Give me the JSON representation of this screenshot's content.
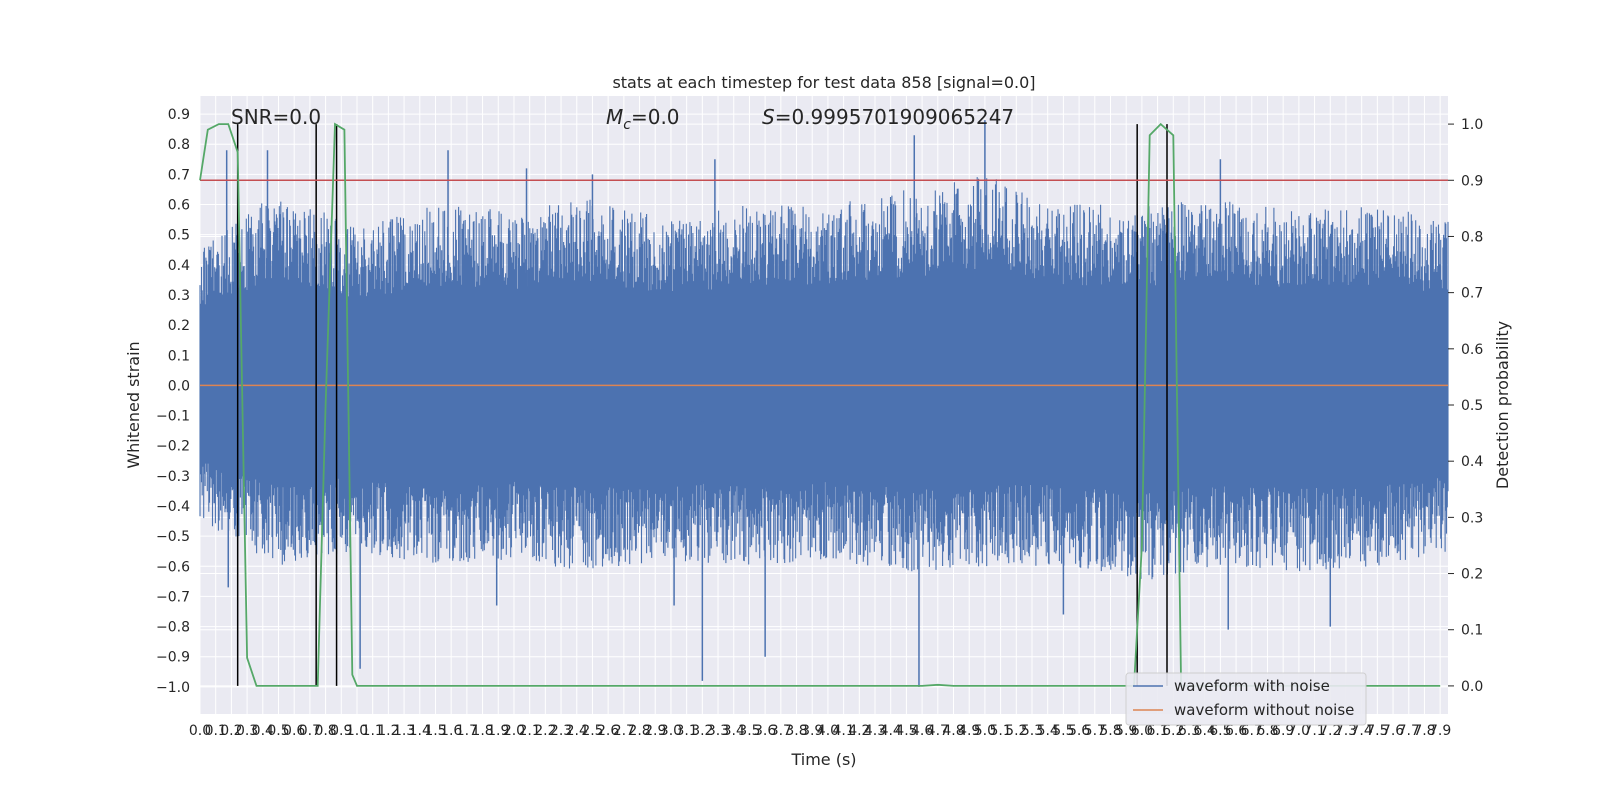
{
  "chart_data": {
    "type": "line",
    "title": "stats at each timestep for test data 858 [signal=0.0]",
    "xlabel": "Time (s)",
    "ylabel_left": "Whitened strain",
    "ylabel_right": "Detection probability",
    "annotations": {
      "snr": "SNR=0.0",
      "mc_symbol": "M",
      "mc_sub": "c",
      "mc_value": "=0.0",
      "s_symbol": "S",
      "s_value": "=0.9995701909065247"
    },
    "xlim": [
      0.0,
      7.95
    ],
    "ylim_left": [
      -1.09,
      0.96
    ],
    "ylim_right": [
      -0.05,
      1.05
    ],
    "x_ticks": [
      0.0,
      0.1,
      0.2,
      0.3,
      0.4,
      0.5,
      0.6,
      0.7,
      0.8,
      0.9,
      1.0,
      1.1,
      1.2,
      1.3,
      1.4,
      1.5,
      1.6,
      1.7,
      1.8,
      1.9,
      2.0,
      2.1,
      2.2,
      2.3,
      2.4,
      2.5,
      2.6,
      2.7,
      2.8,
      2.9,
      3.0,
      3.1,
      3.2,
      3.3,
      3.4,
      3.5,
      3.6,
      3.7,
      3.8,
      3.9,
      4.0,
      4.1,
      4.2,
      4.3,
      4.4,
      4.5,
      4.6,
      4.7,
      4.8,
      4.9,
      5.0,
      5.1,
      5.2,
      5.3,
      5.4,
      5.5,
      5.6,
      5.7,
      5.8,
      5.9,
      6.0,
      6.1,
      6.2,
      6.3,
      6.4,
      6.5,
      6.6,
      6.7,
      6.8,
      6.9,
      7.0,
      7.1,
      7.2,
      7.3,
      7.4,
      7.5,
      7.6,
      7.7,
      7.8,
      7.9
    ],
    "left_ticks": [
      0.9,
      0.8,
      0.7,
      0.6,
      0.5,
      0.4,
      0.3,
      0.2,
      0.1,
      0.0,
      -0.1,
      -0.2,
      -0.3,
      -0.4,
      -0.5,
      -0.6,
      -0.7,
      -0.8,
      -0.9,
      -1.0
    ],
    "right_ticks": [
      1.0,
      0.9,
      0.8,
      0.7,
      0.6,
      0.5,
      0.4,
      0.3,
      0.2,
      0.1,
      0.0
    ],
    "series": [
      {
        "name": "waveform with noise",
        "color": "#4c72b0",
        "envelope": {
          "x": [
            0.0,
            0.5,
            1.0,
            1.5,
            2.0,
            2.5,
            3.0,
            3.5,
            4.0,
            4.5,
            5.0,
            5.5,
            6.0,
            6.5,
            7.0,
            7.5,
            7.95
          ],
          "upper": [
            0.45,
            0.65,
            0.52,
            0.6,
            0.58,
            0.62,
            0.55,
            0.6,
            0.6,
            0.65,
            0.7,
            0.6,
            0.6,
            0.62,
            0.58,
            0.6,
            0.55
          ],
          "lower": [
            -0.45,
            -0.6,
            -0.55,
            -0.6,
            -0.58,
            -0.62,
            -0.58,
            -0.6,
            -0.58,
            -0.62,
            -0.6,
            -0.6,
            -0.65,
            -0.6,
            -0.62,
            -0.6,
            -0.55
          ]
        },
        "peaks": [
          [
            0.17,
            0.78
          ],
          [
            0.43,
            0.78
          ],
          [
            1.58,
            0.78
          ],
          [
            2.08,
            0.72
          ],
          [
            2.5,
            0.7
          ],
          [
            3.28,
            0.75
          ],
          [
            4.55,
            0.83
          ],
          [
            5.0,
            0.88
          ],
          [
            6.5,
            0.75
          ],
          [
            0.18,
            -0.67
          ],
          [
            1.02,
            -0.94
          ],
          [
            1.89,
            -0.73
          ],
          [
            3.02,
            -0.73
          ],
          [
            3.2,
            -0.98
          ],
          [
            3.6,
            -0.9
          ],
          [
            4.58,
            -1.0
          ],
          [
            5.5,
            -0.76
          ],
          [
            6.55,
            -0.81
          ],
          [
            7.2,
            -0.8
          ]
        ]
      },
      {
        "name": "waveform without noise",
        "color": "#dd8452",
        "y_constant": 0.0
      },
      {
        "name": "detection probability",
        "color": "#55a868",
        "axis": "right",
        "x": [
          0.0,
          0.05,
          0.12,
          0.18,
          0.24,
          0.3,
          0.36,
          0.4,
          0.5,
          0.6,
          0.68,
          0.75,
          0.8,
          0.86,
          0.92,
          0.97,
          1.0,
          1.05,
          1.2,
          2.0,
          3.0,
          4.0,
          4.5,
          4.6,
          4.7,
          4.8,
          5.0,
          5.5,
          5.95,
          6.0,
          6.05,
          6.12,
          6.2,
          6.25,
          6.3,
          6.35,
          7.0,
          7.9
        ],
        "y": [
          0.9,
          0.99,
          1.0,
          1.0,
          0.95,
          0.05,
          0.0,
          0.0,
          0.0,
          0.0,
          0.0,
          0.0,
          0.5,
          1.0,
          0.99,
          0.02,
          0.0,
          0.0,
          0.0,
          0.0,
          0.0,
          0.0,
          0.0,
          0.0,
          0.002,
          0.0,
          0.0,
          0.0,
          0.0,
          0.25,
          0.98,
          1.0,
          0.98,
          0.0,
          0.0,
          0.0,
          0.0,
          0.0
        ]
      }
    ],
    "vertical_lines": [
      0.24,
      0.74,
      0.87,
      5.97,
      6.16
    ],
    "threshold_line": 0.9,
    "threshold_color": "#c44e52",
    "legend": {
      "placement": "lower-right",
      "entries": [
        "waveform with noise",
        "waveform without noise"
      ]
    },
    "grid": true,
    "background_color": "#eaeaf2"
  }
}
